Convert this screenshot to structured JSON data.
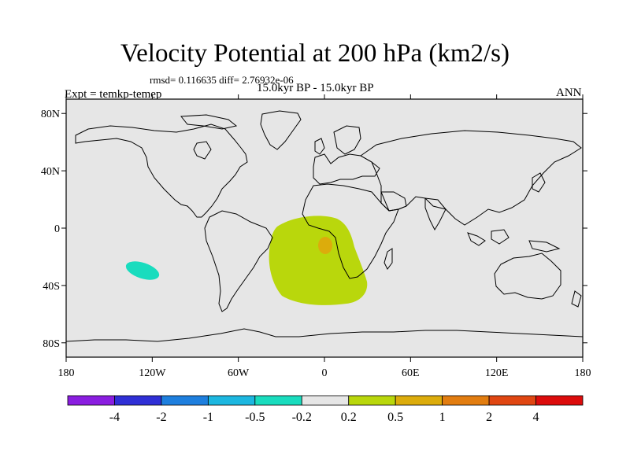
{
  "title": "Velocity Potential at 200 hPa (km2/s)",
  "stats": "rmsd= 0.116635  diff= 2.76932e-06",
  "experiment": "Expt = temkp-temep",
  "period": "15.0kyr BP - 15.0kyr BP",
  "season": "ANN",
  "map": {
    "lat_range": [
      -90,
      90
    ],
    "lon_range": [
      -180,
      180
    ],
    "lat_ticks": [
      "80N",
      "40N",
      "0",
      "40S",
      "80S"
    ],
    "lon_ticks": [
      "180",
      "120W",
      "60W",
      "0",
      "60E",
      "120E",
      "180"
    ],
    "background_color": "#e6e6e6",
    "features": [
      {
        "name": "positive-anomaly-south-atlantic",
        "level": "0.2 to 0.5",
        "color": "#b9d70c"
      },
      {
        "name": "positive-anomaly-core",
        "level": "0.5 to 1",
        "color": "#dcac0c"
      },
      {
        "name": "negative-anomaly-south-pacific",
        "level": "-0.5 to -0.2",
        "color": "#19dcbe"
      }
    ]
  },
  "colorbar": {
    "colors": [
      "#8a1de0",
      "#2f2fd6",
      "#1e7fde",
      "#1cb7e0",
      "#19dcbe",
      "#e6e6e6",
      "#b9d70c",
      "#dcac0c",
      "#e27d10",
      "#e04612",
      "#dc0c0c"
    ],
    "labels": [
      "-4",
      "-2",
      "-1",
      "-0.5",
      "-0.2",
      "0.2",
      "0.5",
      "1",
      "2",
      "4"
    ]
  }
}
